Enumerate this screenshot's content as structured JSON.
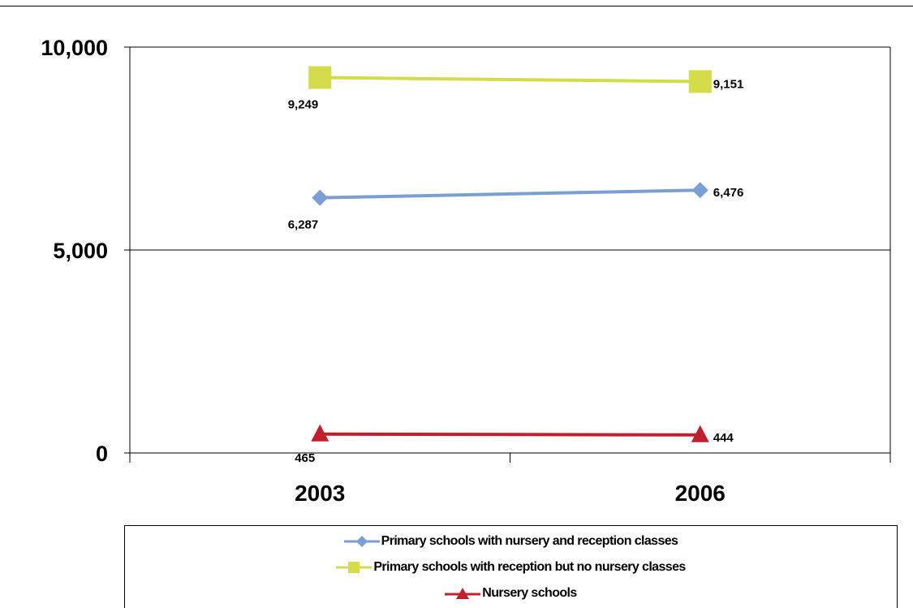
{
  "chart_data": {
    "type": "line",
    "categories": [
      "2003",
      "2006"
    ],
    "ylim": [
      0,
      10000
    ],
    "yticks": [
      0,
      5000,
      10000
    ],
    "ytick_labels": [
      "0",
      "5,000",
      "10,000"
    ],
    "grid": "horizontal",
    "legend_position": "bottom",
    "series": [
      {
        "name": "Primary schools with nursery and reception classes",
        "values": [
          6287,
          6476
        ],
        "labels": [
          "6,287",
          "6,476"
        ],
        "color": "#7a9fd4",
        "marker": "diamond"
      },
      {
        "name": "Primary schools with reception but no nursery classes",
        "values": [
          9249,
          9151
        ],
        "labels": [
          "9,249",
          "9,151"
        ],
        "color": "#d4dc4a",
        "marker": "square"
      },
      {
        "name": "Nursery schools",
        "values": [
          465,
          444
        ],
        "labels": [
          "465",
          "444"
        ],
        "color": "#c0202c",
        "marker": "triangle"
      }
    ]
  }
}
